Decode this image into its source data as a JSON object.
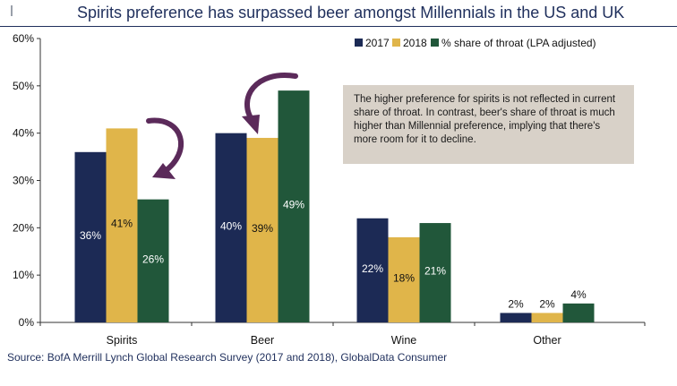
{
  "title": "Spirits preference has surpassed beer amongst Millennials in the US and UK",
  "source": "Source: BofA Merrill Lynch Global Research Survey (2017 and 2018), GlobalData Consumer",
  "annotation": "The higher preference for spirits is not reflected in current share of throat. In contrast, beer's share of throat is much higher than Millennial preference, implying that there's more room for it to decline.",
  "colors": {
    "series_2017": "#1c2a55",
    "series_2018": "#e0b54a",
    "series_share": "#21573a",
    "arrow": "#5b2a5a",
    "axis": "#333333",
    "title": "#1f2f5c"
  },
  "chart_data": {
    "type": "bar",
    "categories": [
      "Spirits",
      "Beer",
      "Wine",
      "Other"
    ],
    "series": [
      {
        "name": "2017",
        "values": [
          36,
          40,
          22,
          2
        ],
        "labels": [
          "36%",
          "40%",
          "22%",
          "2%"
        ]
      },
      {
        "name": "2018",
        "values": [
          41,
          39,
          18,
          2
        ],
        "labels": [
          "41%",
          "39%",
          "18%",
          "2%"
        ]
      },
      {
        "name": "% share of throat (LPA adjusted)",
        "values": [
          26,
          49,
          21,
          4
        ],
        "labels": [
          "26%",
          "49%",
          "21%",
          "4%"
        ]
      }
    ],
    "y_ticks": [
      "0%",
      "10%",
      "20%",
      "30%",
      "40%",
      "50%",
      "60%"
    ],
    "ylim": [
      0,
      60
    ],
    "legend_position": "top-right",
    "grid": false
  }
}
